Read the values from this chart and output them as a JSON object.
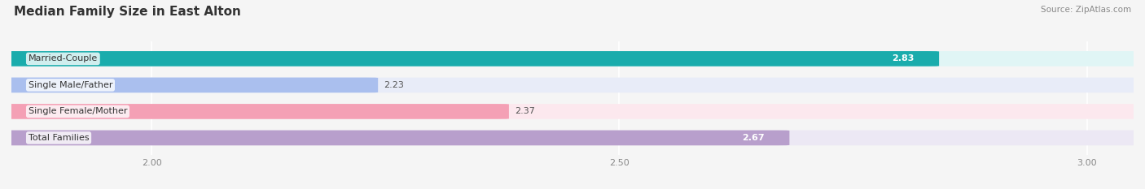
{
  "title": "Median Family Size in East Alton",
  "source": "Source: ZipAtlas.com",
  "categories": [
    "Married-Couple",
    "Single Male/Father",
    "Single Female/Mother",
    "Total Families"
  ],
  "values": [
    2.83,
    2.23,
    2.37,
    2.67
  ],
  "bar_colors": [
    "#1aacac",
    "#aabfee",
    "#f4a0b5",
    "#b89fcc"
  ],
  "bar_bg_colors": [
    "#e0f5f5",
    "#e8ecf8",
    "#fce8ee",
    "#ece8f4"
  ],
  "xlim": [
    1.85,
    3.05
  ],
  "xticks": [
    2.0,
    2.5,
    3.0
  ],
  "bar_height": 0.55,
  "figsize": [
    14.06,
    2.33
  ],
  "dpi": 100,
  "title_fontsize": 11,
  "label_fontsize": 8,
  "value_fontsize": 8,
  "tick_fontsize": 8,
  "background_color": "#f5f5f5",
  "plot_bg_color": "#f5f5f5",
  "value_inside": [
    true,
    false,
    false,
    true
  ]
}
